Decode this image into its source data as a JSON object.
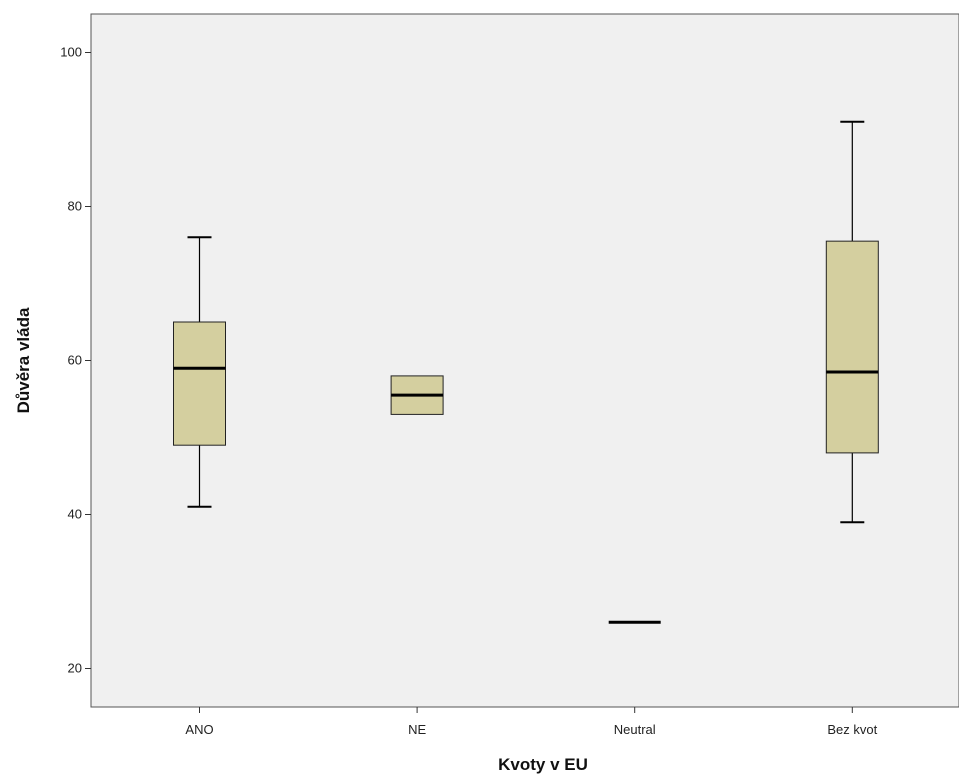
{
  "chart_data": {
    "type": "boxplot",
    "title": "",
    "xlabel": "Kvoty v EU",
    "ylabel": "Důvěra vláda",
    "ylim": [
      15,
      105
    ],
    "yticks": [
      20,
      40,
      60,
      80,
      100
    ],
    "grid": false,
    "categories": [
      "ANO",
      "NE",
      "Neutral",
      "Bez kvot"
    ],
    "boxes": [
      {
        "category": "ANO",
        "min": 41,
        "q1": 49,
        "median": 59,
        "q3": 65,
        "max": 76
      },
      {
        "category": "NE",
        "min": 53,
        "q1": 53,
        "median": 55.5,
        "q3": 58,
        "max": 58
      },
      {
        "category": "Neutral",
        "min": 26,
        "q1": 26,
        "median": 26,
        "q3": 26,
        "max": 26
      },
      {
        "category": "Bez kvot",
        "min": 39,
        "q1": 48,
        "median": 58.5,
        "q3": 75.5,
        "max": 91
      }
    ]
  },
  "colors": {
    "box_fill": "#d4cf9f",
    "plot_background": "#f0f0f0",
    "line": "#000000"
  }
}
